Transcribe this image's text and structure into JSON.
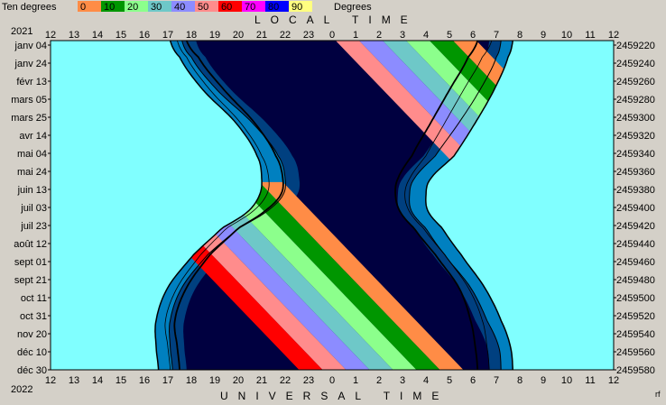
{
  "legend": {
    "label": "Ten degrees",
    "unit": "Degrees",
    "bins": [
      {
        "tick": "0",
        "color": "#ff8c46"
      },
      {
        "tick": "10",
        "color": "#009600"
      },
      {
        "tick": "20",
        "color": "#8cff8c"
      },
      {
        "tick": "30",
        "color": "#6ec8c8"
      },
      {
        "tick": "40",
        "color": "#8c8cff"
      },
      {
        "tick": "50",
        "color": "#ff8c8c"
      },
      {
        "tick": "60",
        "color": "#ff0000"
      },
      {
        "tick": "70",
        "color": "#ff00ff"
      },
      {
        "tick": "80",
        "color": "#0000ff"
      },
      {
        "tick": "90",
        "color": "#ffff80"
      }
    ]
  },
  "header": {
    "year_top": "2021",
    "year_bottom": "2022"
  },
  "chart_data": {
    "type": "area",
    "title_top": "LOCAL TIME",
    "title_bottom": "UNIVERSAL TIME",
    "x_ticks_top": [
      "12",
      "13",
      "14",
      "15",
      "16",
      "17",
      "18",
      "19",
      "20",
      "21",
      "22",
      "23",
      "0",
      "1",
      "2",
      "3",
      "4",
      "5",
      "6",
      "7",
      "8",
      "9",
      "10",
      "11",
      "12"
    ],
    "x_ticks_bottom": [
      "12",
      "13",
      "14",
      "15",
      "16",
      "17",
      "18",
      "19",
      "20",
      "21",
      "22",
      "23",
      "0",
      "1",
      "2",
      "3",
      "4",
      "5",
      "6",
      "7",
      "8",
      "9",
      "10",
      "11",
      "12"
    ],
    "date_labels": [
      "janv 04",
      "janv 24",
      "févr 13",
      "mars 05",
      "mars 25",
      "avr 14",
      "mai 04",
      "mai 24",
      "juin 13",
      "juil 03",
      "juil 23",
      "août 12",
      "sept 01",
      "sept 21",
      "oct 11",
      "oct 31",
      "nov 20",
      "déc 10",
      "déc 30"
    ],
    "jd_labels": [
      "2459220",
      "2459240",
      "2459260",
      "2459280",
      "2459300",
      "2459320",
      "2459340",
      "2459360",
      "2459380",
      "2459400",
      "2459420",
      "2459440",
      "2459460",
      "2459480",
      "2459500",
      "2459520",
      "2459540",
      "2459560",
      "2459580"
    ],
    "corner_label": "rf",
    "colors": {
      "daylight": "#80ffff",
      "civil": "#0080c0",
      "nautical": "#004080",
      "night": "#000040",
      "outline": "#000000"
    },
    "boundaries": {
      "t": [
        0,
        0.05,
        0.15,
        0.25,
        0.35,
        0.42,
        0.47,
        0.52,
        0.57,
        0.65,
        0.75,
        0.85,
        0.93,
        1
      ],
      "sunset": [
        17.1,
        17.5,
        18.5,
        19.9,
        20.8,
        21.0,
        20.9,
        20.4,
        19.3,
        18.1,
        17.0,
        16.5,
        16.5,
        16.6
      ],
      "civil_dusk": [
        17.6,
        18.0,
        19.1,
        20.6,
        21.7,
        22.0,
        21.9,
        21.2,
        20.0,
        18.7,
        17.6,
        17.1,
        17.1,
        17.2
      ],
      "sunrise": [
        31.7,
        31.5,
        30.9,
        30.1,
        29.2,
        28.2,
        28.0,
        28.1,
        28.7,
        29.5,
        30.5,
        31.2,
        31.6,
        31.7
      ],
      "civil_dawn": [
        31.2,
        31.0,
        30.3,
        29.4,
        28.4,
        27.5,
        27.3,
        27.4,
        28.0,
        28.8,
        29.9,
        30.6,
        31.1,
        31.2
      ],
      "black_line": [
        17.8,
        18.3,
        19.4,
        20.7,
        21.6,
        21.9,
        21.8,
        21.1,
        20.0,
        18.8,
        17.8,
        17.3,
        17.4,
        17.5
      ],
      "thin_line": [
        17.4,
        17.8,
        18.8,
        20.1,
        21.0,
        21.3,
        21.2,
        20.6,
        19.5,
        18.4,
        17.4,
        16.9,
        17.0,
        17.1
      ],
      "black_line_dawn": [
        30.2,
        29.8,
        29.0,
        28.2,
        27.4,
        26.8,
        26.7,
        26.9,
        27.5,
        28.4,
        29.4,
        29.9,
        30.1,
        30.2
      ],
      "thin_line_dawn": [
        30.8,
        30.4,
        29.6,
        28.8,
        28.0,
        27.3,
        27.1,
        27.3,
        27.9,
        28.8,
        29.8,
        30.4,
        30.6,
        30.7
      ]
    },
    "stripes": {
      "band_colors": [
        "#ff8c46",
        "#009600",
        "#8cff8c",
        "#6ec8c8",
        "#8c8cff",
        "#ff8c8c",
        "#ff0000"
      ],
      "early_start_hour": 20.7,
      "early_end_t": 0.4,
      "late_start_t": 0.48,
      "late_start_hour": 20.9,
      "slope_hours_per_year": 13.5
    }
  }
}
